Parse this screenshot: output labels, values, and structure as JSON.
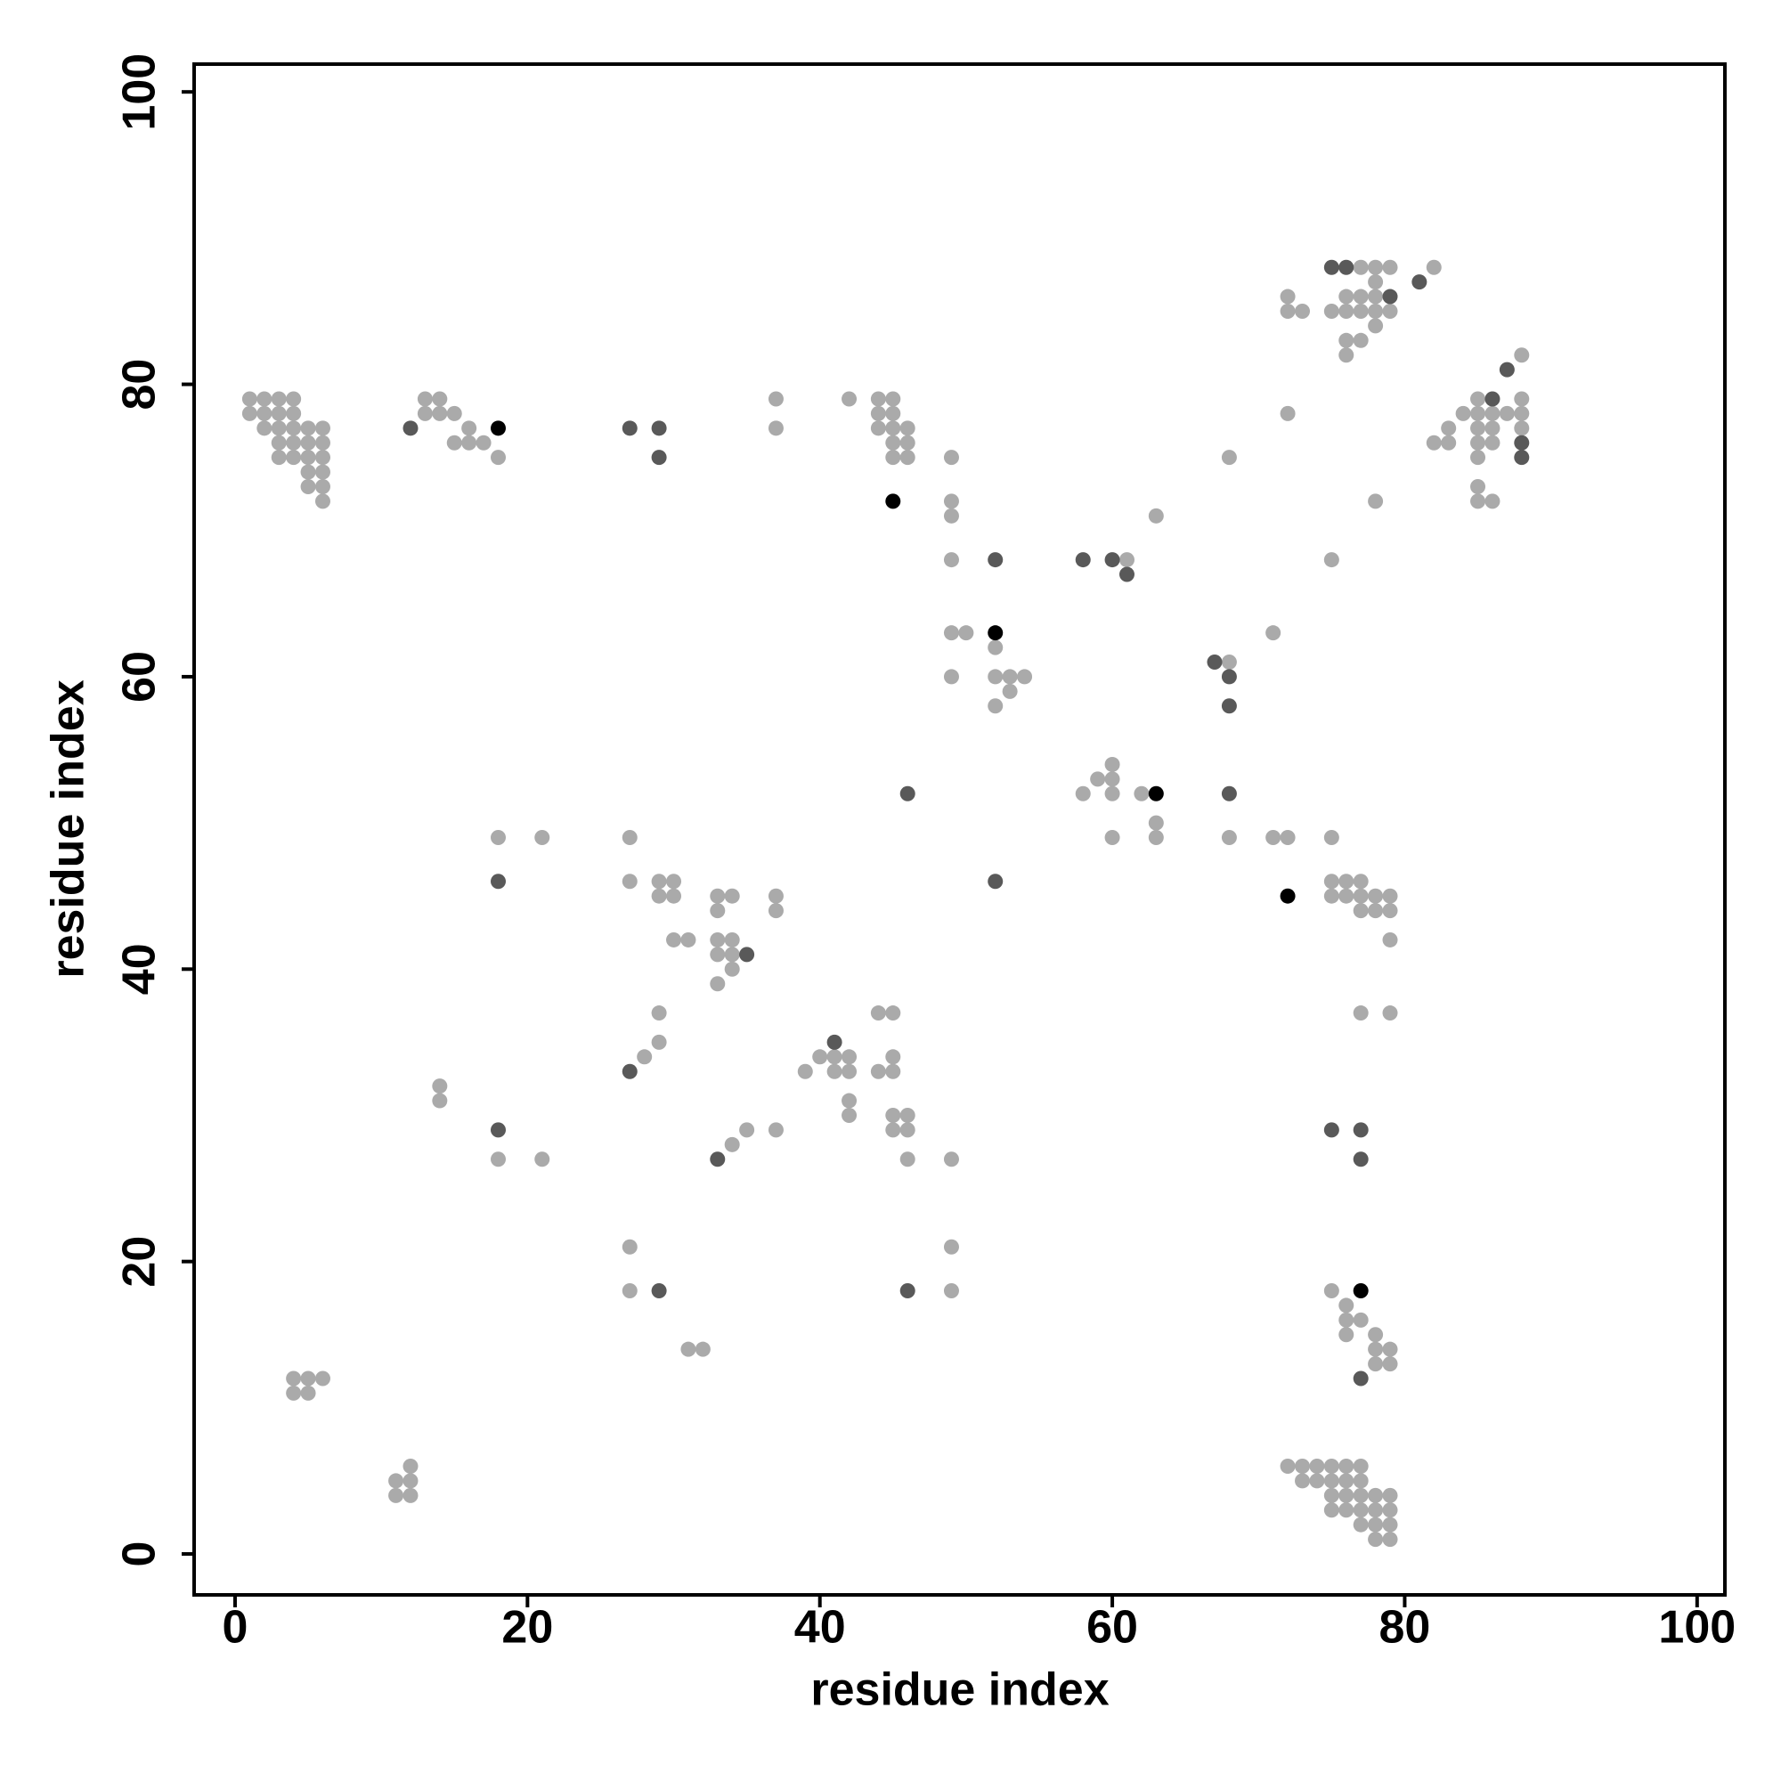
{
  "chart_data": {
    "type": "scatter",
    "xlabel": "residue index",
    "ylabel": "residue index",
    "xlim": [
      -2.8,
      101.9
    ],
    "ylim": [
      -2.8,
      101.9
    ],
    "xticks": [
      0,
      20,
      40,
      60,
      80,
      100
    ],
    "yticks": [
      0,
      20,
      40,
      60,
      80,
      100
    ],
    "grid": false,
    "series": [
      {
        "color": "#aaaaaa",
        "x": [
          1,
          2,
          3,
          4,
          1,
          2,
          3,
          4,
          2,
          3,
          4,
          5,
          6,
          3,
          4,
          5,
          6,
          3,
          4,
          5,
          6,
          5,
          6,
          5,
          6,
          6,
          13,
          14,
          13,
          14,
          15,
          16,
          15,
          16,
          17,
          18,
          37,
          37,
          42,
          44,
          45,
          44,
          45,
          44,
          45,
          46,
          45,
          46,
          45,
          46,
          49,
          49,
          49,
          49,
          61,
          63,
          49,
          50,
          52,
          52,
          53,
          54,
          53,
          52,
          49,
          68,
          71,
          72,
          68,
          75,
          78,
          77,
          78,
          79,
          82,
          78,
          72,
          76,
          77,
          78,
          72,
          73,
          75,
          76,
          77,
          78,
          79,
          78,
          76,
          77,
          76,
          88,
          85,
          88,
          84,
          85,
          86,
          87,
          88,
          83,
          85,
          86,
          88,
          82,
          83,
          85,
          86,
          85,
          85,
          85,
          86,
          58,
          59,
          60,
          60,
          60,
          62,
          63,
          63,
          60,
          68,
          71,
          72,
          75,
          18,
          21,
          27,
          27,
          29,
          30,
          29,
          30,
          33,
          34,
          33,
          37,
          37,
          30,
          31,
          33,
          34,
          33,
          34,
          34,
          33,
          75,
          76,
          77,
          75,
          76,
          77,
          78,
          79,
          77,
          78,
          79,
          79,
          77,
          79,
          29,
          29,
          28,
          14,
          14,
          40,
          41,
          42,
          41,
          42,
          39,
          42,
          42,
          44,
          45,
          45,
          44,
          45,
          45,
          46,
          45,
          46,
          46,
          49,
          18,
          21,
          35,
          34,
          37,
          27,
          27,
          49,
          49,
          31,
          32,
          75,
          76,
          76,
          77,
          76,
          78,
          78,
          79,
          78,
          79,
          4,
          5,
          6,
          4,
          5,
          11,
          12,
          11,
          12,
          12,
          72,
          73,
          74,
          75,
          76,
          77,
          73,
          74,
          75,
          76,
          77,
          75,
          76,
          77,
          78,
          79,
          75,
          76,
          77,
          78,
          79,
          77,
          78,
          79,
          78,
          79
        ],
        "values": [
          79,
          79,
          79,
          79,
          78,
          78,
          78,
          78,
          77,
          77,
          77,
          77,
          77,
          76,
          76,
          76,
          76,
          75,
          75,
          75,
          75,
          74,
          74,
          73,
          73,
          72,
          79,
          79,
          78,
          78,
          78,
          77,
          76,
          76,
          76,
          75,
          79,
          77,
          79,
          79,
          79,
          78,
          78,
          77,
          77,
          77,
          76,
          76,
          75,
          75,
          75,
          72,
          71,
          68,
          68,
          71,
          63,
          63,
          62,
          60,
          60,
          60,
          59,
          58,
          60,
          61,
          63,
          78,
          75,
          68,
          72,
          88,
          88,
          88,
          88,
          87,
          86,
          86,
          86,
          86,
          85,
          85,
          85,
          85,
          85,
          85,
          85,
          84,
          83,
          83,
          82,
          82,
          79,
          79,
          78,
          78,
          78,
          78,
          78,
          77,
          77,
          77,
          77,
          76,
          76,
          76,
          76,
          75,
          73,
          72,
          72,
          52,
          53,
          54,
          53,
          52,
          52,
          50,
          49,
          49,
          49,
          49,
          49,
          49,
          49,
          49,
          49,
          46,
          46,
          46,
          45,
          45,
          45,
          45,
          44,
          45,
          44,
          42,
          42,
          42,
          42,
          41,
          41,
          40,
          39,
          46,
          46,
          46,
          45,
          45,
          45,
          45,
          45,
          44,
          44,
          44,
          42,
          37,
          37,
          37,
          35,
          34,
          32,
          31,
          34,
          34,
          34,
          33,
          33,
          33,
          31,
          30,
          37,
          37,
          34,
          33,
          33,
          30,
          30,
          29,
          29,
          27,
          27,
          27,
          27,
          29,
          28,
          29,
          21,
          18,
          21,
          18,
          14,
          14,
          18,
          17,
          16,
          16,
          15,
          15,
          14,
          14,
          13,
          13,
          12,
          12,
          12,
          11,
          11,
          5,
          5,
          4,
          4,
          6,
          6,
          6,
          6,
          6,
          6,
          6,
          5,
          5,
          5,
          5,
          5,
          4,
          4,
          4,
          4,
          4,
          3,
          3,
          3,
          3,
          3,
          2,
          2,
          2,
          1,
          1
        ]
      },
      {
        "color": "#595959",
        "x": [
          12,
          27,
          29,
          29,
          52,
          58,
          60,
          61,
          67,
          68,
          68,
          75,
          76,
          81,
          79,
          87,
          86,
          88,
          88,
          46,
          68,
          18,
          52,
          35,
          27,
          41,
          18,
          33,
          75,
          77,
          77,
          29,
          46,
          77
        ],
        "values": [
          77,
          77,
          77,
          75,
          68,
          68,
          68,
          67,
          61,
          60,
          58,
          88,
          88,
          87,
          86,
          81,
          79,
          76,
          75,
          52,
          52,
          46,
          46,
          41,
          33,
          35,
          29,
          27,
          29,
          29,
          27,
          18,
          18,
          12
        ]
      },
      {
        "color": "#000000",
        "x": [
          18,
          45,
          52,
          63,
          72,
          77
        ],
        "values": [
          77,
          72,
          63,
          52,
          45,
          18
        ]
      }
    ]
  }
}
